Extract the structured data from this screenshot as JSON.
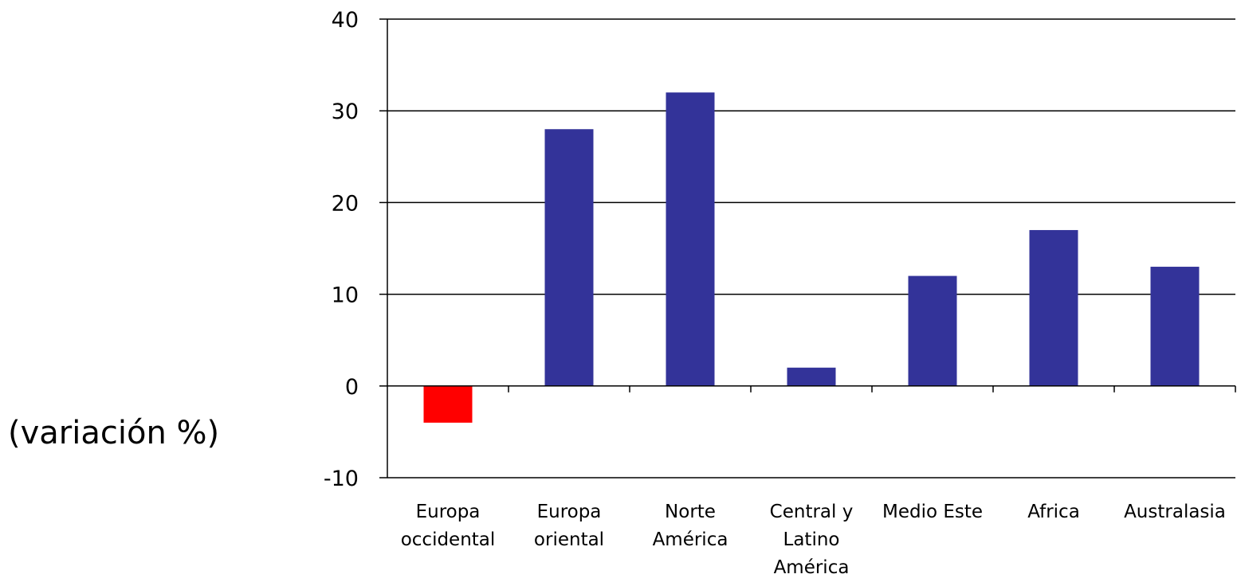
{
  "chart_data": {
    "type": "bar",
    "title": "",
    "xlabel": "",
    "ylabel": "(variación %)",
    "ylim": [
      -10,
      40
    ],
    "yticks": [
      -10,
      0,
      10,
      20,
      30,
      40
    ],
    "grid": true,
    "legend": "none",
    "categories": [
      [
        "Europa",
        "occidental"
      ],
      [
        "Europa",
        "oriental"
      ],
      [
        "Norte",
        "América"
      ],
      [
        "Central y",
        "Latino",
        "América"
      ],
      [
        "Medio Este"
      ],
      [
        "Africa"
      ],
      [
        "Australasia"
      ]
    ],
    "values": [
      -4,
      28,
      32,
      2,
      12,
      17,
      13
    ],
    "colors": {
      "positive": "#333399",
      "negative": "#ff0000",
      "negative_tick_label": "#ff0000",
      "axis": "#000000"
    }
  }
}
